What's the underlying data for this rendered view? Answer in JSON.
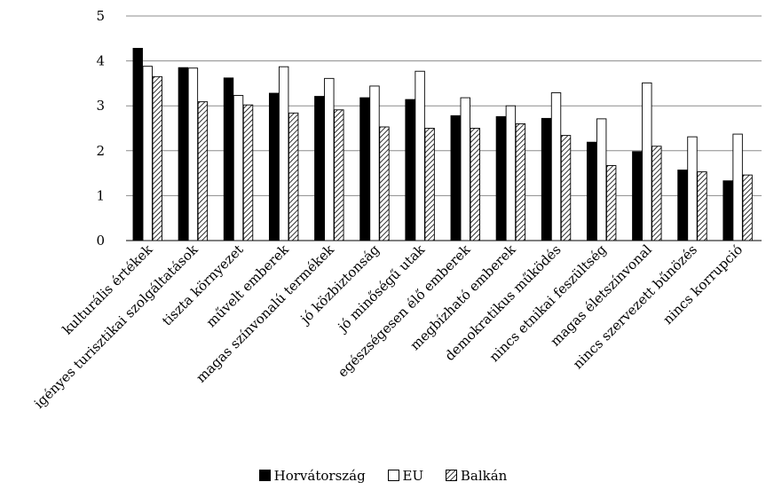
{
  "chart_data": {
    "type": "bar",
    "categories": [
      "kulturális értékek",
      "igényes turisztikai szolgáltatások",
      "tiszta környezet",
      "művelt emberek",
      "magas színvonalú termékek",
      "jó közbiztonság",
      "jó minőségű utak",
      "egészségesen élő emberek",
      "megbízható emberek",
      "demokratikus működés",
      "nincs etnikai feszültség",
      "magas életszínvonal",
      "nincs szervezett bűnözés",
      "nincs korrupció"
    ],
    "series": [
      {
        "name": "Horvátország",
        "pattern": "solid-black",
        "values": [
          4.28,
          3.85,
          3.62,
          3.28,
          3.21,
          3.18,
          3.14,
          2.78,
          2.76,
          2.72,
          2.19,
          1.98,
          1.57,
          1.33
        ]
      },
      {
        "name": "EU",
        "pattern": "white",
        "values": [
          3.88,
          3.84,
          3.23,
          3.87,
          3.61,
          3.44,
          3.77,
          3.18,
          3.0,
          3.29,
          2.71,
          3.51,
          2.31,
          2.37
        ]
      },
      {
        "name": "Balkán",
        "pattern": "diagonal-hatch",
        "values": [
          3.65,
          3.09,
          3.02,
          2.84,
          2.91,
          2.53,
          2.5,
          2.5,
          2.6,
          2.34,
          1.67,
          2.1,
          1.53,
          1.46
        ]
      }
    ],
    "yticks": [
      0,
      1,
      2,
      3,
      4,
      5
    ],
    "ylim": [
      0,
      5
    ],
    "grid": "horizontal",
    "legend_position": "bottom"
  }
}
